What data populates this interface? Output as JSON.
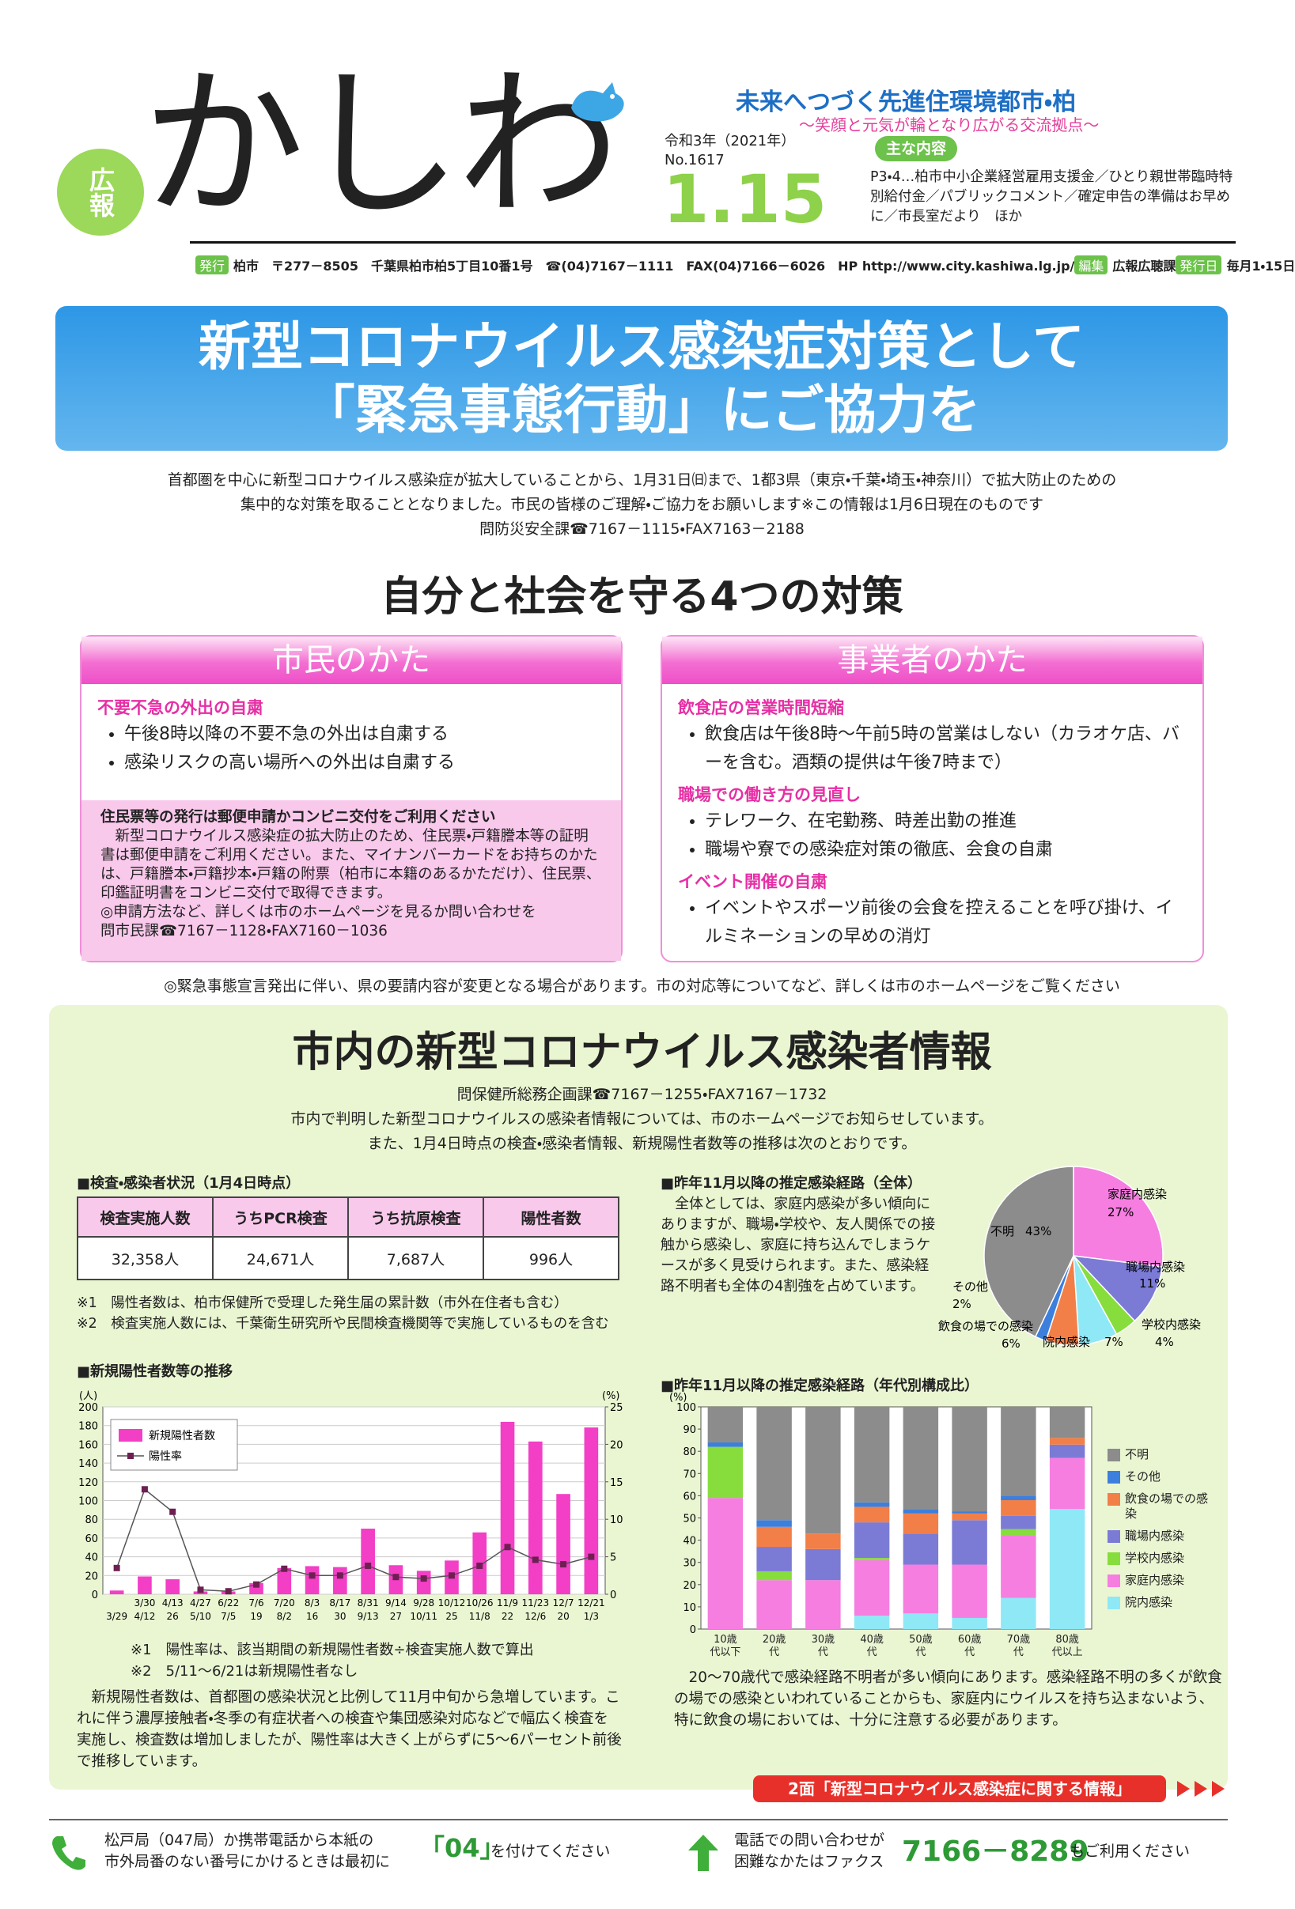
{
  "header": {
    "badge": "広報",
    "title": "かしわ",
    "era": "令和3年（2021年）",
    "number": "No.1617",
    "date": "1.15",
    "slogan": "未来へつづく先進住環境都市・柏",
    "subslogan": "〜笑顔と元気が輪となり広がる交流拠点〜",
    "contents_label": "主な内容",
    "contents": "P3・4…柏市中小企業経営雇用支援金／ひとり親世帯臨時特別給付金／パブリックコメント／確定申告の準備はお早めに／市長室だより　ほか",
    "info": [
      {
        "label": "発行",
        "text": "柏市　〒277－8505　千葉県柏市柏5丁目10番1号　☎(04)7167－1111　FAX(04)7166－6026　HP http://www.city.kashiwa.lg.jp/"
      },
      {
        "label": "編集",
        "text": "広報広聴課"
      },
      {
        "label": "発行日",
        "text": "毎月1・15日"
      }
    ]
  },
  "banner": {
    "lines": [
      "新型コロナウイルス感染症対策として",
      "「緊急事態行動」にご協力を"
    ]
  },
  "intro": {
    "lines": [
      "首都圏を中心に新型コロナウイルス感染症が拡大していることから、1月31日㈰まで、1都3県（東京・千葉・埼玉・神奈川）で拡大防止のための",
      "集中的な対策を取ることとなりました。市民の皆様のご理解・ご協力をお願いします※この情報は1月6日現在のものです",
      "問防災安全課☎7167－1115・FAX7163－2188"
    ]
  },
  "measures": {
    "title": "自分と社会を守る4つの対策",
    "citizens": {
      "heading": "市民のかた",
      "groups": [
        {
          "title": "不要不急の外出の自粛",
          "items": [
            "午後8時以降の不要不急の外出は自粛する",
            "感染リスクの高い場所への外出は自粛する"
          ]
        }
      ],
      "box": {
        "title": "住民票等の発行は郵便申請かコンビニ交付をご利用ください",
        "text": "　新型コロナウイルス感染症の拡大防止のため、住民票・戸籍謄本等の証明書は郵便申請をご利用ください。また、マイナンバーカードをお持ちのかたは、戸籍謄本・戸籍抄本・戸籍の附票（柏市に本籍のあるかただけ）、住民票、印鑑証明書をコンビニ交付で取得できます。",
        "note": "◎申請方法など、詳しくは市のホームページを見るか問い合わせを",
        "contact": "問市民課☎7167－1128・FAX7160－1036"
      }
    },
    "business": {
      "heading": "事業者のかた",
      "groups": [
        {
          "title": "飲食店の営業時間短縮",
          "items": [
            "飲食店は午後8時～午前5時の営業はしない（カラオケ店、バーを含む。酒類の提供は午後7時まで）"
          ]
        },
        {
          "title": "職場での働き方の見直し",
          "items": [
            "テレワーク、在宅勤務、時差出勤の推進",
            "職場や寮での感染症対策の徹底、会食の自粛"
          ]
        },
        {
          "title": "イベント開催の自粛",
          "items": [
            "イベントやスポーツ前後の会食を控えることを呼び掛け、イルミネーションの早めの消灯"
          ]
        }
      ]
    },
    "notice": "◎緊急事態宣言発出に伴い、県の要請内容が変更となる場合があります。市の対応等についてなど、詳しくは市のホームページをご覧ください"
  },
  "infection": {
    "title": "市内の新型コロナウイルス感染者情報",
    "contact": "問保健所総務企画課☎7167－1255・FAX7167－1732",
    "lines": [
      "市内で判明した新型コロナウイルスの感染者情報については、市のホームページでお知らせしています。",
      "また、1月4日時点の検査・感染者情報、新規陽性者数等の推移は次のとおりです。"
    ],
    "table": {
      "title": "■検査・感染者状況（1月4日時点）",
      "headers": [
        "検査実施人数",
        "うちPCR検査",
        "うち抗原検査",
        "陽性者数"
      ],
      "rows": [
        [
          "32,358人",
          "24,671人",
          "7,687人",
          "996人"
        ]
      ]
    },
    "notes": [
      "※1　陽性者数は、柏市保健所で受理した発生届の累計数（市外在住者も含む）",
      "※2　検査実施人数には、千葉衛生研究所や民間検査機関等で実施しているものを含む"
    ]
  },
  "chart_data": [
    {
      "type": "bar_line",
      "title": "■新規陽性者数等の推移",
      "categories": [
        null,
        "3/30",
        "4/13",
        "4/27",
        "6/22",
        "7/6",
        "7/20",
        "8/3",
        "8/17",
        "8/31",
        "9/14",
        "9/28",
        "10/12",
        "10/26",
        "11/9",
        "11/23",
        "12/7",
        "12/21"
      ],
      "category_ends": [
        "3/29",
        "4/12",
        "26",
        "5/10",
        "7/5",
        "19",
        "8/2",
        "16",
        "30",
        "9/13",
        "27",
        "10/11",
        "25",
        "11/8",
        "22",
        "12/6",
        "20",
        "1/3"
      ],
      "series": [
        {
          "name": "新規陽性者数",
          "type": "bar",
          "color": "#f23fc6",
          "values": [
            4,
            19,
            16,
            3,
            3,
            12,
            28,
            30,
            29,
            70,
            31,
            25,
            36,
            66,
            184,
            163,
            107,
            178
          ]
        },
        {
          "name": "陽性率",
          "type": "line",
          "axis": "y2",
          "color": "#6e1f52",
          "values": [
            3.5,
            14,
            11,
            0.6,
            0.4,
            1.3,
            3.4,
            2.5,
            2.5,
            3.8,
            2.3,
            2.1,
            2.5,
            3.8,
            6.3,
            4.6,
            4,
            5
          ]
        }
      ],
      "ylabel": "(人)",
      "y2label": "(%)",
      "ylim": [
        0,
        200
      ],
      "yticks": [
        0,
        20,
        40,
        60,
        80,
        100,
        120,
        140,
        160,
        180,
        200
      ],
      "y2lim": [
        0,
        25
      ],
      "y2ticks": [
        0,
        5,
        10,
        15,
        20,
        25
      ],
      "grid": true,
      "legend": "upper left",
      "notes": [
        "※1　陽性率は、該当期間の新規陽性者数÷検査実施人数で算出",
        "※2　5/11～6/21は新規陽性者なし"
      ],
      "text": "　新規陽性者数は、首都圏の感染状況と比例して11月中旬から急増しています。これに伴う濃厚接触者・冬季の有症状者への検査や集団感染対応などで幅広く検査を実施し、検査数は増加しましたが、陽性率は大きく上がらずに5～6パーセント前後で推移しています。"
    },
    {
      "type": "pie",
      "title": "■昨年11月以降の推定感染経路（全体）",
      "categories": [
        "家庭内感染",
        "職場内感染",
        "学校内感染",
        "院内感染",
        "飲食の場での感染",
        "その他",
        "不明"
      ],
      "values": [
        27,
        11,
        4,
        7,
        6,
        2,
        43
      ],
      "value_labels": [
        "27%",
        "11%",
        "4%",
        "7%",
        "6%",
        "2%",
        "43%"
      ],
      "colors": [
        "#f57ee0",
        "#7b7bd6",
        "#86dd3c",
        "#8fe8f5",
        "#f27f48",
        "#3d7fdc",
        "#8c8c8c"
      ],
      "text": "　全体としては、家庭内感染が多い傾向にありますが、職場・学校や、友人関係での接触から感染し、家庭に持ち込んでしまうケースが多く見受けられます。また、感染経路不明者も全体の4割強を占めています。"
    },
    {
      "type": "stacked_bar",
      "title": "■昨年11月以降の推定感染経路（年代別構成比）",
      "categories": [
        "10歳代以下",
        "20歳代",
        "30歳代",
        "40歳代",
        "50歳代",
        "60歳代",
        "70歳代",
        "80歳代以上"
      ],
      "series": [
        {
          "name": "院内感染",
          "color": "#8fe8f5",
          "values": [
            0,
            0,
            0,
            6,
            7,
            5,
            14,
            54
          ]
        },
        {
          "name": "家庭内感染",
          "color": "#f57ee0",
          "values": [
            59,
            22,
            22,
            25,
            22,
            24,
            28,
            23
          ]
        },
        {
          "name": "学校内感染",
          "color": "#86dd3c",
          "values": [
            23,
            4,
            0,
            1,
            0,
            0,
            3,
            0
          ]
        },
        {
          "name": "職場内感染",
          "color": "#7b7bd6",
          "values": [
            0,
            11,
            14,
            16,
            14,
            20,
            6,
            6
          ]
        },
        {
          "name": "飲食の場での感染",
          "color": "#f27f48",
          "values": [
            0,
            9,
            7,
            7,
            9,
            3,
            7,
            3
          ]
        },
        {
          "name": "その他",
          "color": "#3d7fdc",
          "values": [
            2,
            3,
            0,
            2,
            2,
            1,
            2,
            0
          ]
        },
        {
          "name": "不明",
          "color": "#8c8c8c",
          "values": [
            16,
            51,
            57,
            43,
            46,
            47,
            40,
            14
          ]
        }
      ],
      "ylabel": "(%)",
      "ylim": [
        0,
        100
      ],
      "yticks": [
        0,
        10,
        20,
        30,
        40,
        50,
        60,
        70,
        80,
        90,
        100
      ],
      "grid": false,
      "legend": "right",
      "text": "　20～70歳代で感染経路不明者が多い傾向にあります。感染経路不明の多くが飲食の場での感染といわれていることからも、家庭内にウイルスを持ち込まないよう、特に飲食の場においては、十分に注意する必要があります。"
    }
  ],
  "link": "2面「新型コロナウイルス感染症に関する情報」",
  "footer": {
    "left": [
      "松戸局（047局）か携帯電話から本紙の",
      "市外局番のない番号にかけるときは最初に"
    ],
    "code": "「04」",
    "code_after": "を付けてください",
    "right": [
      "電話での問い合わせが",
      "困難なかたはファクス"
    ],
    "fax": "7166－8289",
    "fax_after": "もご利用ください"
  }
}
